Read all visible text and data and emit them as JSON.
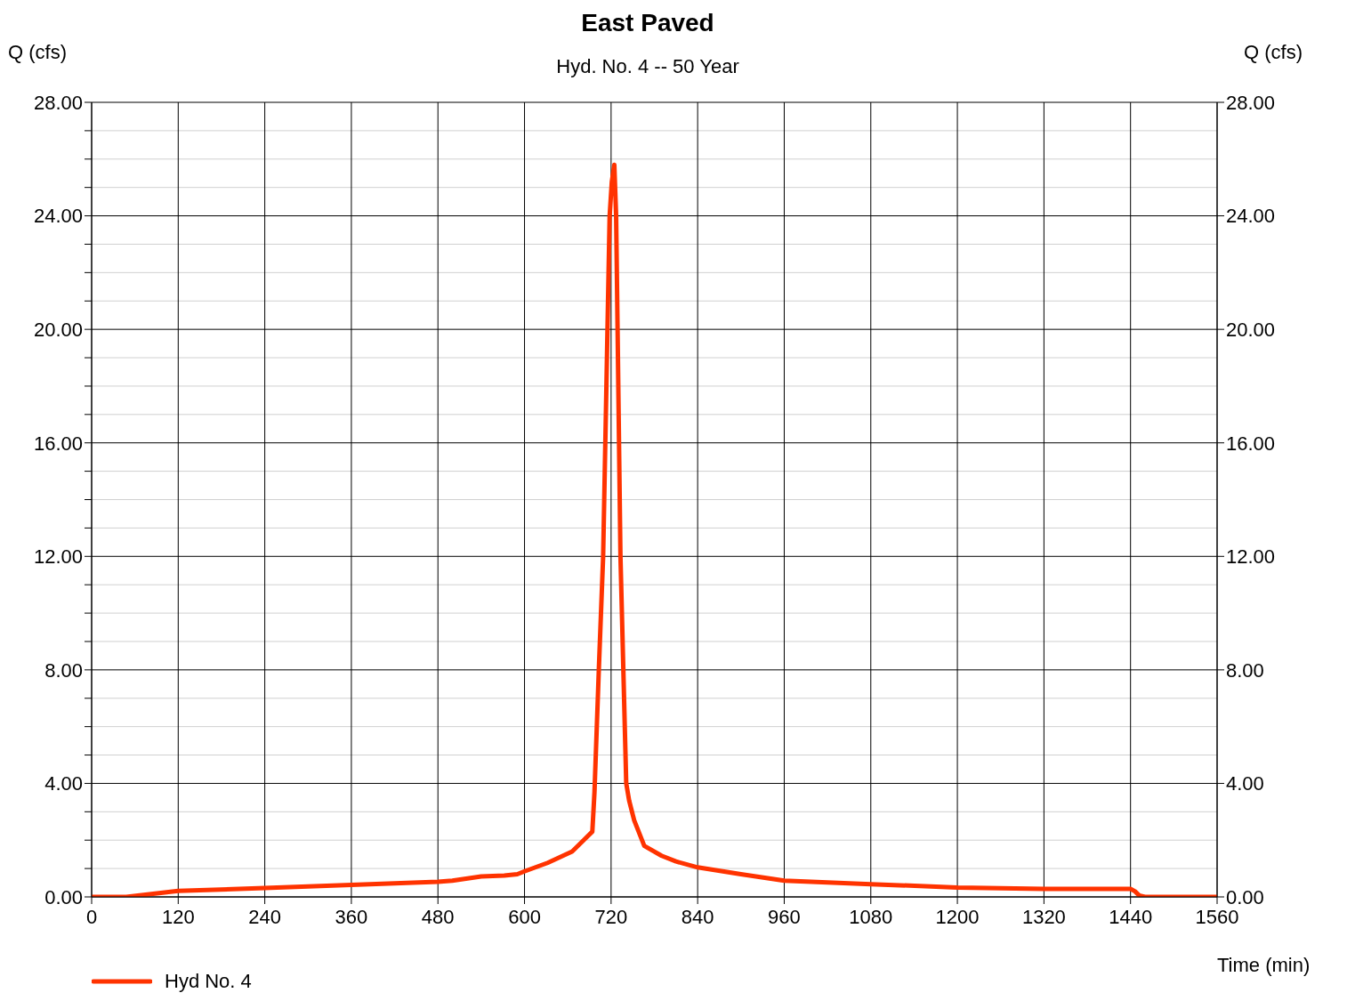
{
  "chart_data": {
    "type": "line",
    "title": "East Paved",
    "subtitle": "Hyd. No. 4 -- 50 Year",
    "xlabel": "Time (min)",
    "ylabel": "Q (cfs)",
    "y2label": "Q (cfs)",
    "x": [
      0,
      48,
      120,
      240,
      360,
      480,
      500,
      540,
      572,
      590,
      600,
      632,
      666,
      682,
      694,
      697,
      703,
      709,
      715,
      718,
      721,
      724.5,
      727,
      729,
      733,
      737,
      741,
      745,
      752,
      766,
      790,
      810,
      840,
      900,
      960,
      1080,
      1200,
      1320,
      1440,
      1446,
      1452,
      1460,
      1560
    ],
    "series": [
      {
        "name": "Hyd No. 4",
        "color": "#ff3300",
        "values": [
          0,
          0,
          0.21,
          0.31,
          0.42,
          0.53,
          0.57,
          0.72,
          0.75,
          0.8,
          0.9,
          1.2,
          1.6,
          2.0,
          2.3,
          3.7,
          8.0,
          12.0,
          20.0,
          24.0,
          25.2,
          25.8,
          24.0,
          20.0,
          12.0,
          8.0,
          4.0,
          3.4,
          2.7,
          1.8,
          1.45,
          1.25,
          1.04,
          0.8,
          0.57,
          0.45,
          0.33,
          0.28,
          0.28,
          0.2,
          0.05,
          0,
          0
        ]
      }
    ],
    "xlim": [
      0,
      1560
    ],
    "xticks": [
      0,
      120,
      240,
      360,
      480,
      600,
      720,
      840,
      960,
      1080,
      1200,
      1320,
      1440,
      1560
    ],
    "ylim": [
      0,
      28
    ],
    "yticks": [
      {
        "value": 0,
        "label": "0.00"
      },
      {
        "value": 1,
        "label": null
      },
      {
        "value": 2,
        "label": null
      },
      {
        "value": 3,
        "label": null
      },
      {
        "value": 4,
        "label": "4.00"
      },
      {
        "value": 5,
        "label": null
      },
      {
        "value": 6,
        "label": null
      },
      {
        "value": 7,
        "label": null
      },
      {
        "value": 8,
        "label": "8.00"
      },
      {
        "value": 9,
        "label": null
      },
      {
        "value": 10,
        "label": null
      },
      {
        "value": 11,
        "label": null
      },
      {
        "value": 12,
        "label": "12.00"
      },
      {
        "value": 13,
        "label": null
      },
      {
        "value": 14,
        "label": null
      },
      {
        "value": 15,
        "label": null
      },
      {
        "value": 16,
        "label": "16.00"
      },
      {
        "value": 17,
        "label": null
      },
      {
        "value": 18,
        "label": null
      },
      {
        "value": 19,
        "label": null
      },
      {
        "value": 20,
        "label": "20.00"
      },
      {
        "value": 21,
        "label": null
      },
      {
        "value": 22,
        "label": null
      },
      {
        "value": 23,
        "label": null
      },
      {
        "value": 24,
        "label": "24.00"
      },
      {
        "value": 25,
        "label": null
      },
      {
        "value": 26,
        "label": null
      },
      {
        "value": 27,
        "label": null
      },
      {
        "value": 28,
        "label": "28.00"
      }
    ],
    "y2lim": [
      0,
      28
    ],
    "y2ticks": [
      {
        "value": 0,
        "label": "0.00"
      },
      {
        "value": 4,
        "label": "4.00"
      },
      {
        "value": 8,
        "label": "8.00"
      },
      {
        "value": 12,
        "label": "12.00"
      },
      {
        "value": 16,
        "label": "16.00"
      },
      {
        "value": 20,
        "label": "20.00"
      },
      {
        "value": 24,
        "label": "24.00"
      },
      {
        "value": 28,
        "label": "28.00"
      }
    ],
    "grid": true,
    "legend": "bottom left",
    "marker": "none",
    "line_style": "solid"
  }
}
